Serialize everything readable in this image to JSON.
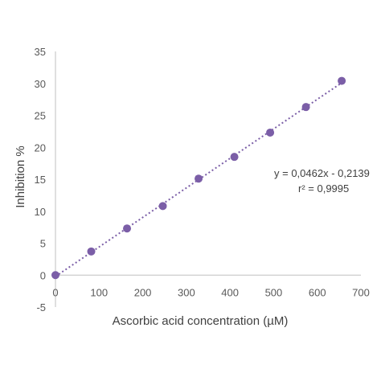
{
  "chart_data": {
    "type": "scatter",
    "xlabel": "Ascorbic acid concentration (µM)",
    "ylabel": "Inhibition %",
    "xlim": [
      0,
      700
    ],
    "ylim": [
      -5,
      35
    ],
    "x_ticks": [
      0,
      100,
      200,
      300,
      400,
      500,
      600,
      700
    ],
    "y_ticks": [
      -5,
      0,
      5,
      10,
      15,
      20,
      25,
      30,
      35
    ],
    "x_tick_labels": [
      "0",
      "100",
      "200",
      "300",
      "400",
      "500",
      "600",
      "700"
    ],
    "y_tick_labels": [
      "-5",
      "0",
      "5",
      "10",
      "15",
      "20",
      "25",
      "30",
      "35"
    ],
    "grid": false,
    "marker_color": "#7b5ea7",
    "trendline_color": "#7b5ea7",
    "series": [
      {
        "x": [
          0,
          82,
          164,
          246,
          328,
          410,
          492,
          574,
          656
        ],
        "y": [
          0,
          3.7,
          7.3,
          10.8,
          15.1,
          18.5,
          22.3,
          26.3,
          30.4
        ]
      }
    ],
    "trendline": {
      "slope": 0.0462,
      "intercept": -0.2139,
      "style": "dotted"
    },
    "annotations": {
      "equation": "y = 0,0462x - 0,2139",
      "r_squared": "r² = 0,9995"
    }
  }
}
